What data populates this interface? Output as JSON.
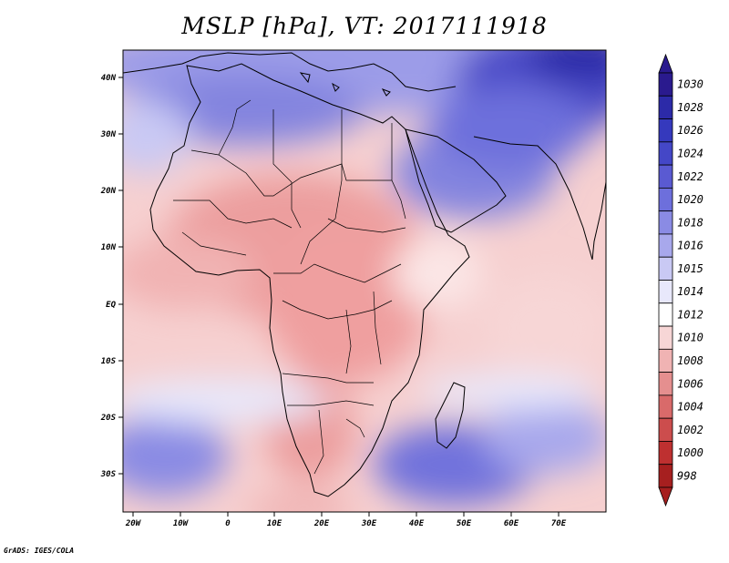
{
  "title": "MSLP [hPa], VT: 2017111918",
  "credit": "GrADS: IGES/COLA",
  "lat_labels": [
    "40N",
    "30N",
    "20N",
    "10N",
    "EQ",
    "10S",
    "20S",
    "30S"
  ],
  "lon_labels": [
    "20W",
    "10W",
    "0",
    "10E",
    "20E",
    "30E",
    "40E",
    "50E",
    "60E",
    "70E"
  ],
  "colorbar": {
    "levels": [
      "1030",
      "1028",
      "1026",
      "1024",
      "1022",
      "1020",
      "1018",
      "1016",
      "1015",
      "1014",
      "1012",
      "1010",
      "1008",
      "1006",
      "1004",
      "1002",
      "1000",
      "998"
    ],
    "colors": [
      "#2a1a8e",
      "#2c2aa8",
      "#3539bd",
      "#4447c7",
      "#5a5ad2",
      "#6d6fdc",
      "#8a8be4",
      "#a8a8ec",
      "#c9c9f4",
      "#e8e8fb",
      "#ffffff",
      "#f7d6d6",
      "#f0b3b3",
      "#e58f8f",
      "#d96a6a",
      "#cc4d4d",
      "#be3030",
      "#a61f1f"
    ]
  }
}
